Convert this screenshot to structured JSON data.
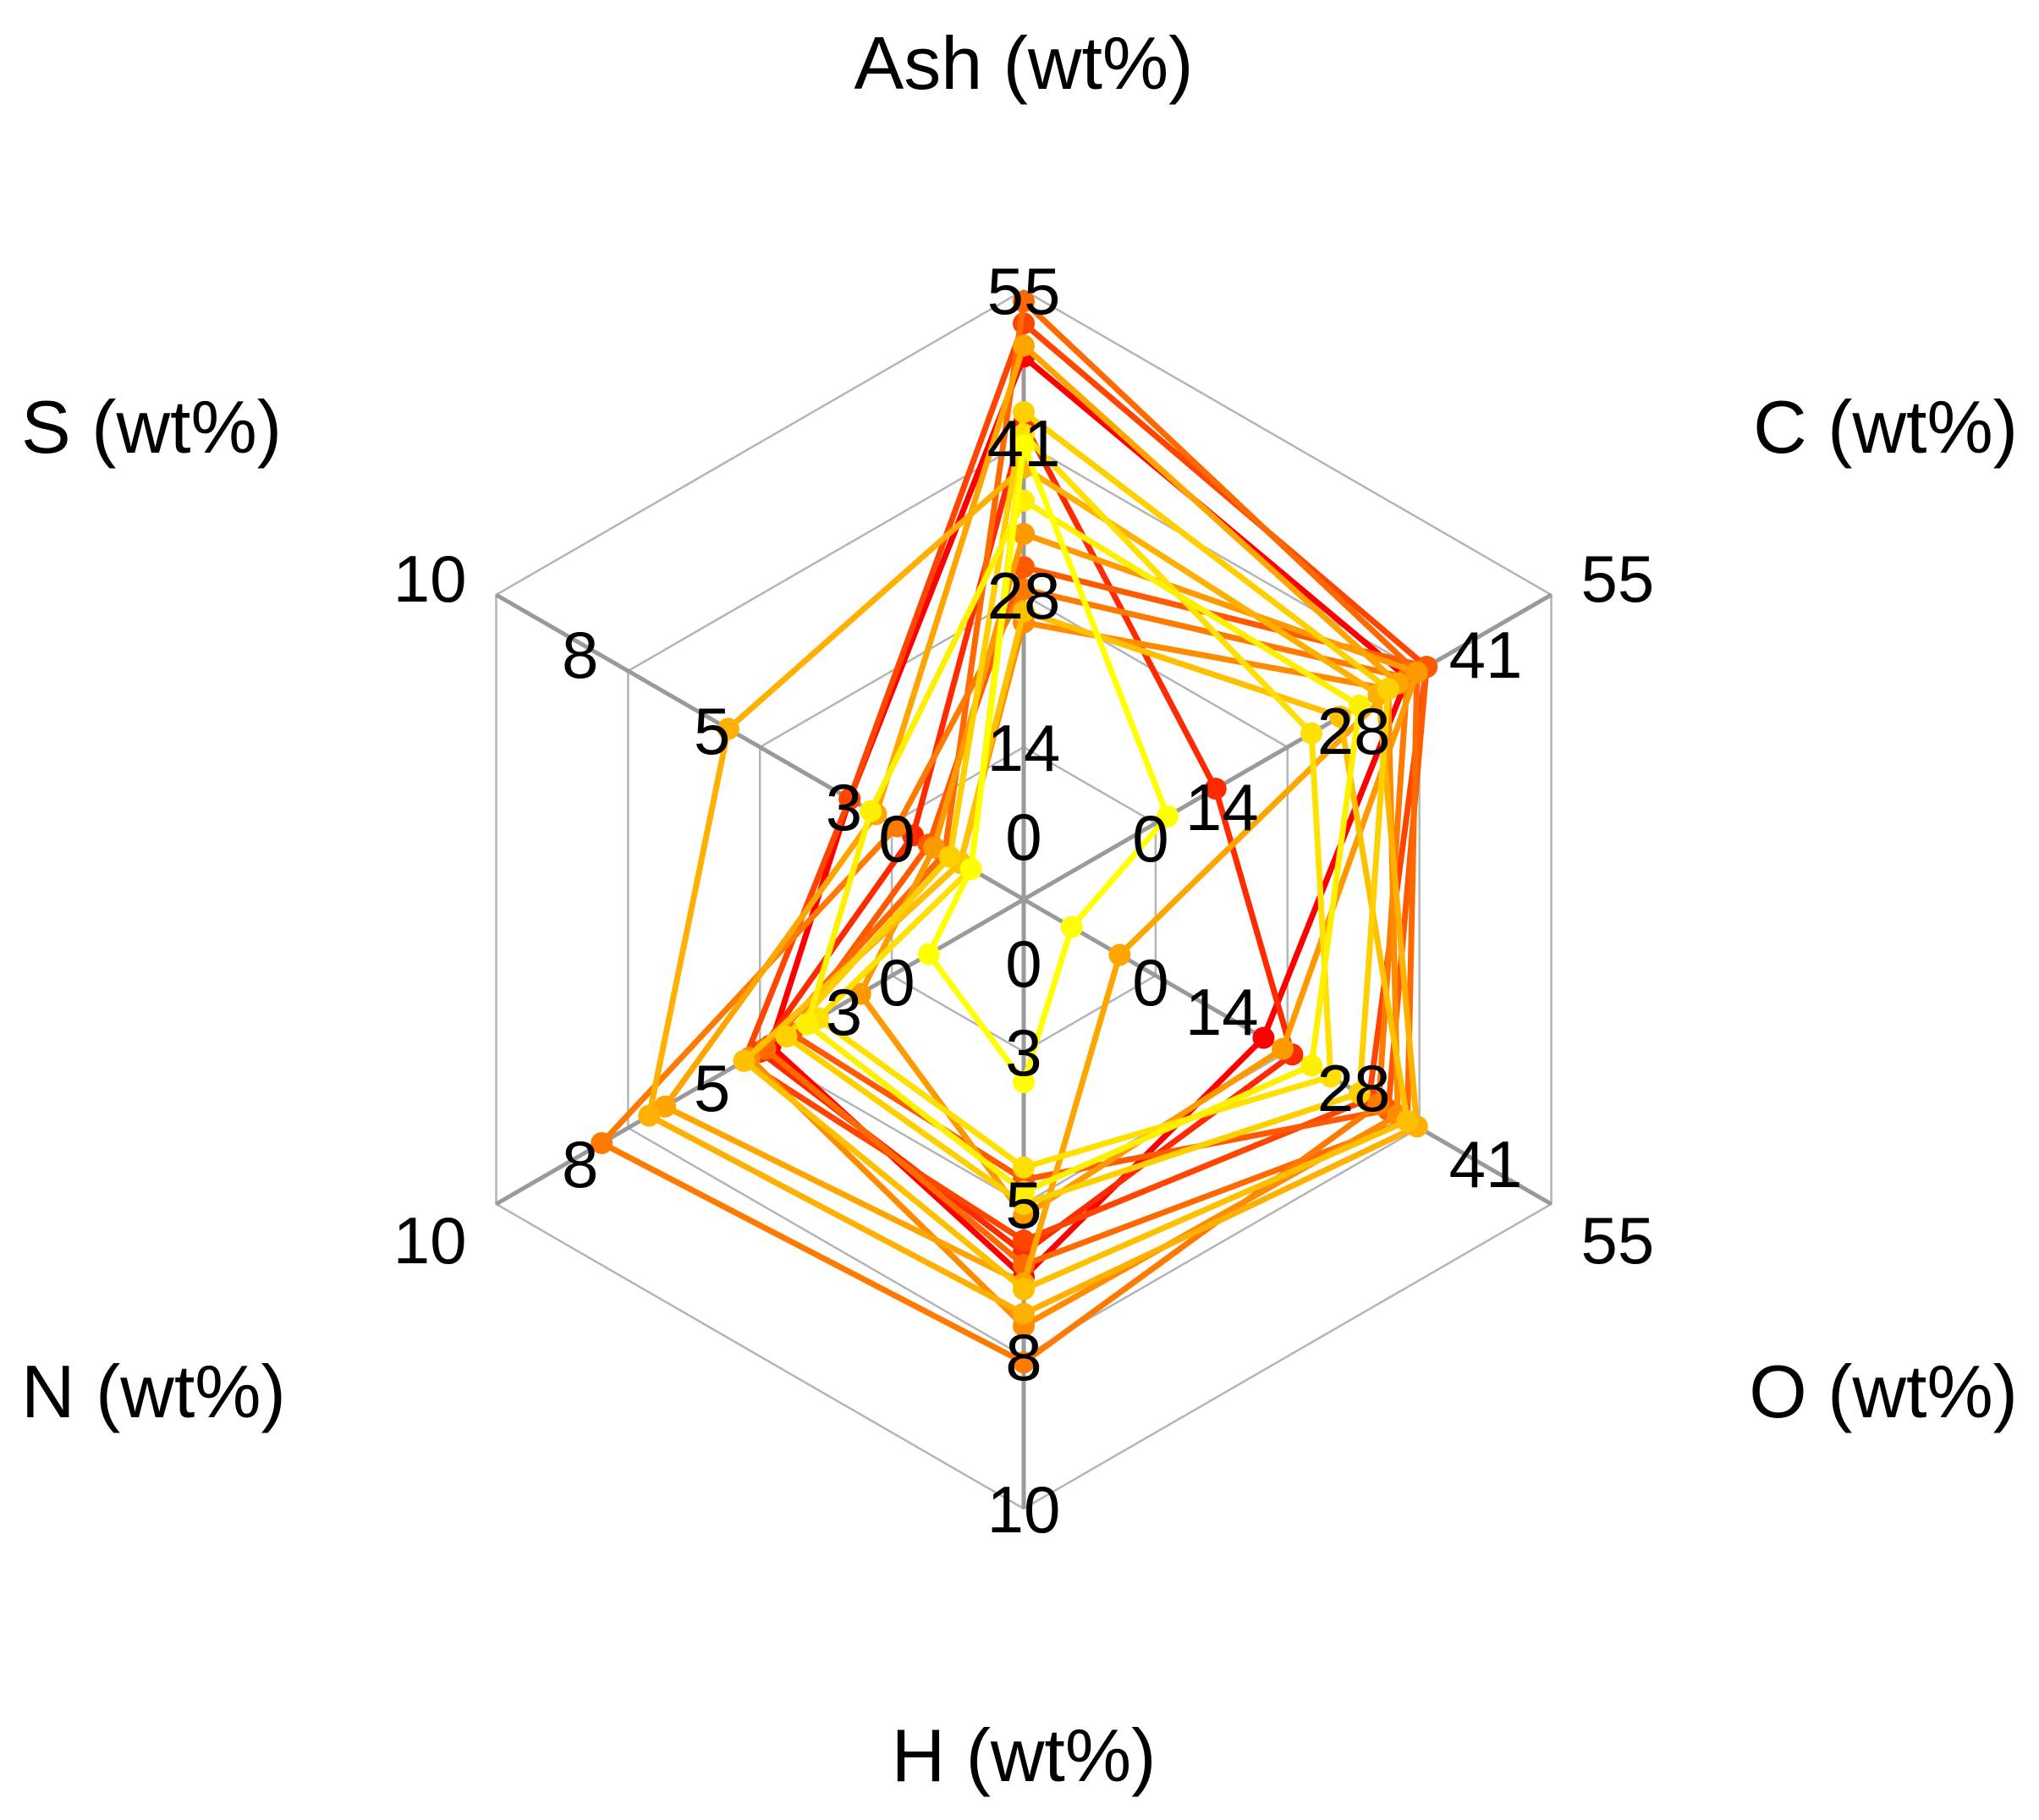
{
  "chart_data": {
    "type": "radar",
    "axes": [
      {
        "label": "Ash (wt%)",
        "ticks": [
          "0",
          "14",
          "28",
          "41",
          "55"
        ],
        "range": [
          0,
          55
        ]
      },
      {
        "label": "C (wt%)",
        "ticks": [
          "0",
          "14",
          "28",
          "41",
          "55"
        ],
        "range": [
          0,
          55
        ]
      },
      {
        "label": "O (wt%)",
        "ticks": [
          "0",
          "14",
          "28",
          "41",
          "55"
        ],
        "range": [
          0,
          55
        ]
      },
      {
        "label": "H (wt%)",
        "ticks": [
          "0",
          "3",
          "5",
          "8",
          "10"
        ],
        "range": [
          0,
          10
        ]
      },
      {
        "label": "N (wt%)",
        "ticks": [
          "0",
          "3",
          "5",
          "8",
          "10"
        ],
        "range": [
          0,
          10
        ]
      },
      {
        "label": "S (wt%)",
        "ticks": [
          "0",
          "3",
          "5",
          "8",
          "10"
        ],
        "range": [
          0,
          10
        ]
      }
    ],
    "grid": true,
    "legend": false,
    "series": [
      {
        "color": "#FF0000",
        "values": [
          49,
          40,
          25,
          6.2,
          4.8,
          3.3
        ]
      },
      {
        "color": "#FF2A00",
        "values": [
          43,
          20,
          28,
          5.8,
          5.0,
          2.1
        ]
      },
      {
        "color": "#FF4500",
        "values": [
          52,
          42,
          36,
          5.6,
          5.3,
          3.3
        ]
      },
      {
        "color": "#FF5A00",
        "values": [
          30,
          42,
          38,
          4.6,
          4.4,
          1.8
        ]
      },
      {
        "color": "#FF6A00",
        "values": [
          54,
          41,
          40,
          6.0,
          4.9,
          1.5
        ]
      },
      {
        "color": "#FF7A00",
        "values": [
          28,
          40,
          37,
          7.6,
          8.0,
          2.4
        ]
      },
      {
        "color": "#FF8C00",
        "values": [
          25,
          38,
          39,
          7.0,
          5.2,
          1.2
        ]
      },
      {
        "color": "#FF9900",
        "values": [
          33,
          41,
          27,
          5.2,
          3.1,
          1.7
        ]
      },
      {
        "color": "#FFA500",
        "values": [
          50,
          39,
          10,
          6.3,
          6.8,
          2.8
        ]
      },
      {
        "color": "#FFB000",
        "values": [
          39,
          37,
          41,
          6.8,
          7.1,
          5.6
        ]
      },
      {
        "color": "#FFC000",
        "values": [
          26,
          33,
          40,
          6.4,
          5.3,
          1.2
        ]
      },
      {
        "color": "#FFD000",
        "values": [
          44,
          38,
          35,
          5.0,
          4.5,
          1.4
        ]
      },
      {
        "color": "#FFE000",
        "values": [
          42,
          30,
          32,
          4.4,
          3.9,
          1.0
        ]
      },
      {
        "color": "#FFF000",
        "values": [
          36,
          35,
          30,
          4.8,
          4.1,
          2.9
        ]
      },
      {
        "color": "#FFFF00",
        "values": [
          41,
          15,
          5,
          3.0,
          1.8,
          1.0
        ]
      }
    ]
  }
}
